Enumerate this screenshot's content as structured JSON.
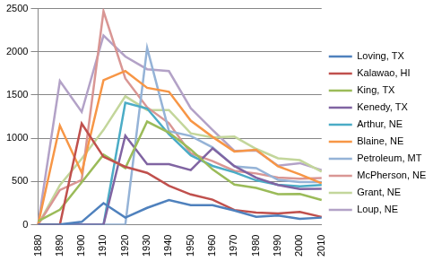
{
  "chart_data": {
    "type": "line",
    "categories": [
      "1880",
      "1890",
      "1900",
      "1910",
      "1920",
      "1930",
      "1940",
      "1950",
      "1960",
      "1970",
      "1980",
      "1990",
      "2000",
      "2010"
    ],
    "series": [
      {
        "name": "Loving, TX",
        "color": "#4f81bd",
        "values": [
          0,
          3,
          33,
          249,
          82,
          195,
          285,
          227,
          226,
          164,
          91,
          107,
          67,
          82
        ]
      },
      {
        "name": "Kalawao, HI",
        "color": "#c0504d",
        "values": [
          0,
          0,
          1170,
          785,
          670,
          600,
          450,
          350,
          290,
          170,
          140,
          130,
          147,
          90
        ]
      },
      {
        "name": "King, TX",
        "color": "#9bbb59",
        "values": [
          40,
          173,
          490,
          810,
          655,
          1193,
          1066,
          870,
          640,
          464,
          425,
          354,
          356,
          286
        ]
      },
      {
        "name": "Kenedy, TX",
        "color": "#8064a2",
        "values": [
          0,
          0,
          0,
          0,
          1030,
          700,
          701,
          632,
          884,
          678,
          543,
          460,
          414,
          416
        ]
      },
      {
        "name": "Arthur, NE",
        "color": "#4bacc6",
        "values": [
          0,
          0,
          0,
          0,
          1412,
          1344,
          1046,
          803,
          680,
          606,
          513,
          462,
          444,
          460
        ]
      },
      {
        "name": "Blaine, NE",
        "color": "#f79646",
        "values": [
          0,
          1146,
          603,
          1672,
          1778,
          1584,
          1538,
          1203,
          1016,
          847,
          867,
          675,
          583,
          478
        ]
      },
      {
        "name": "Petroleum, MT",
        "color": "#95b3d7",
        "values": [
          0,
          0,
          0,
          0,
          0,
          2045,
          1083,
          1026,
          894,
          675,
          655,
          519,
          493,
          494
        ]
      },
      {
        "name": "McPherson, NE",
        "color": "#d99694",
        "values": [
          0,
          401,
          517,
          2470,
          1692,
          1358,
          1175,
          825,
          735,
          623,
          593,
          546,
          533,
          539
        ]
      },
      {
        "name": "Grant, NE",
        "color": "#c3d69b",
        "values": [
          0,
          458,
          763,
          1097,
          1486,
          1327,
          1327,
          1057,
          1009,
          1019,
          877,
          769,
          747,
          614
        ]
      },
      {
        "name": "Loup, NE",
        "color": "#b3a2c7",
        "values": [
          0,
          1662,
          1305,
          2188,
          1946,
          1799,
          1777,
          1348,
          1097,
          854,
          859,
          683,
          712,
          632
        ]
      }
    ],
    "ylim": [
      0,
      2500
    ],
    "yticks": [
      0,
      500,
      1000,
      1500,
      2000,
      2500
    ],
    "grid": true,
    "legend": "right",
    "marker": "none"
  }
}
